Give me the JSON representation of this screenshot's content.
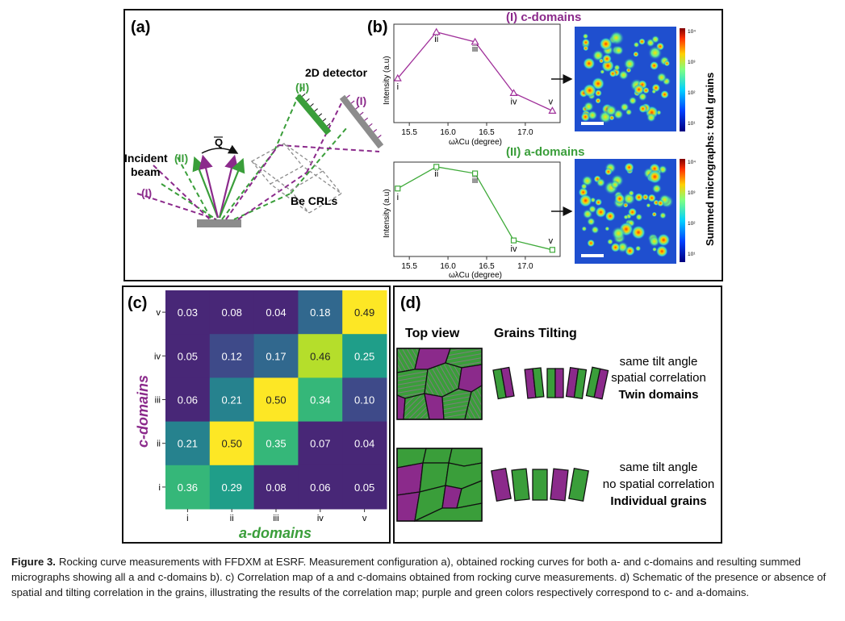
{
  "panels": {
    "a": {
      "letter": "(a)",
      "detector_label": "2D detector",
      "incident_label_1": "Incident",
      "incident_label_2": "beam",
      "crl_label": "Be CRLs",
      "q_label": "Q",
      "roman_I": "(I)",
      "roman_II": "(II)"
    },
    "b": {
      "letter": "(b)",
      "title_c": "(I) c-domains",
      "title_a": "(II) a-domains",
      "ylabel": "Intensity (a.u)",
      "xlabel": "ωλCu (degree)",
      "micrograph_label": "Summed micrographs: total grains",
      "colorbar_ticks": [
        "10⁴",
        "10³",
        "10²",
        "10¹"
      ]
    },
    "c": {
      "letter": "(c)"
    },
    "d": {
      "letter": "(d)",
      "top_view": "Top view",
      "grains_tilting": "Grains Tilting",
      "row1_line1": "same tilt angle",
      "row1_line2": "spatial correlation",
      "row1_line3": "Twin domains",
      "row2_line1": "same tilt angle",
      "row2_line2": "no spatial correlation",
      "row2_line3": "Individual grains"
    }
  },
  "chart_data": [
    {
      "type": "line",
      "name_in_figure": "(I) c-domains",
      "xlabel": "ω λCu (degree)",
      "ylabel": "Intensity (a.u)",
      "x_ticks": [
        "15.5",
        "16.0",
        "16.5",
        "17.0"
      ],
      "xlim": [
        15.3,
        17.45
      ],
      "ylim": [
        0,
        1
      ],
      "points": [
        {
          "label": "i",
          "x": 15.35,
          "y": 0.45
        },
        {
          "label": "ii",
          "x": 15.85,
          "y": 0.92
        },
        {
          "label": "iii",
          "x": 16.35,
          "y": 0.82
        },
        {
          "label": "iv",
          "x": 16.85,
          "y": 0.3
        },
        {
          "label": "v",
          "x": 17.35,
          "y": 0.12
        }
      ],
      "color": "#a0309a"
    },
    {
      "type": "line",
      "name_in_figure": "(II) a-domains",
      "xlabel": "ω λCu (degree)",
      "ylabel": "Intensity (a.u)",
      "x_ticks": [
        "15.5",
        "16.0",
        "16.5",
        "17.0"
      ],
      "xlim": [
        15.3,
        17.45
      ],
      "ylim": [
        0,
        1
      ],
      "points": [
        {
          "label": "i",
          "x": 15.35,
          "y": 0.72
        },
        {
          "label": "ii",
          "x": 15.85,
          "y": 0.95
        },
        {
          "label": "iii",
          "x": 16.35,
          "y": 0.88
        },
        {
          "label": "iv",
          "x": 16.85,
          "y": 0.17
        },
        {
          "label": "v",
          "x": 17.35,
          "y": 0.07
        }
      ],
      "color": "#3faa3a"
    },
    {
      "type": "heatmap",
      "xlabel": "a-domains",
      "ylabel": "c-domains",
      "x_categories": [
        "i",
        "ii",
        "iii",
        "iv",
        "v"
      ],
      "y_categories": [
        "v",
        "iv",
        "iii",
        "ii",
        "i"
      ],
      "values": [
        [
          "0.03",
          "0.08",
          "0.04",
          "0.18",
          "0.49"
        ],
        [
          "0.05",
          "0.12",
          "0.17",
          "0.46",
          "0.25"
        ],
        [
          "0.06",
          "0.21",
          "0.50",
          "0.34",
          "0.10"
        ],
        [
          "0.21",
          "0.50",
          "0.35",
          "0.07",
          "0.04"
        ],
        [
          "0.36",
          "0.29",
          "0.08",
          "0.06",
          "0.05"
        ]
      ],
      "colormap": "viridis"
    }
  ],
  "caption": {
    "label": "Figure 3.",
    "text": "Rocking curve measurements with FFDXM at ESRF. Measurement configuration a), obtained rocking curves for both a- and c-domains and resulting summed micrographs showing all a and c-domains b). c) Correlation map of a and c-domains obtained from rocking curve measurements. d) Schematic of the presence or absence of spatial and tilting correlation in the grains, illustrating the results of the correlation map; purple and green colors respectively correspond to c- and a-domains."
  },
  "colors": {
    "c_domain": "#8b2a8b",
    "a_domain": "#3a9e3a",
    "frame": "#111111"
  }
}
